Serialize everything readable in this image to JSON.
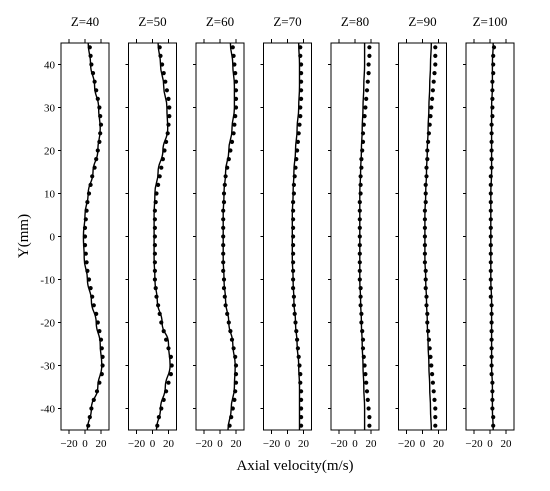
{
  "chart_data": {
    "type": "line",
    "ylabel": "Y(mm)",
    "xlabel": "Axial velocity(m/s)",
    "ylim": [
      -45,
      45
    ],
    "xlim": [
      -30,
      30
    ],
    "x_ticks": [
      -20,
      0,
      20
    ],
    "y_ticks": [
      -40,
      -30,
      -20,
      -10,
      0,
      10,
      20,
      30,
      40
    ],
    "panels": [
      {
        "title": "Z=40",
        "line": {
          "y": [
            -45,
            -40,
            -35,
            -30,
            -25,
            -20,
            -15,
            -10,
            -5,
            0,
            5,
            10,
            15,
            20,
            25,
            30,
            35,
            40,
            45
          ],
          "x": [
            3,
            8,
            16,
            21,
            19,
            14,
            8,
            3,
            -1,
            -2,
            0,
            4,
            10,
            16,
            19,
            17,
            12,
            7,
            4
          ]
        },
        "points": {
          "y": [
            -44,
            -42,
            -40,
            -38,
            -36,
            -34,
            -32,
            -30,
            -28,
            -26,
            -24,
            -22,
            -20,
            -18,
            -16,
            -14,
            -12,
            -10,
            -8,
            -6,
            -4,
            -2,
            0,
            2,
            4,
            6,
            8,
            10,
            12,
            14,
            16,
            18,
            20,
            22,
            24,
            26,
            28,
            30,
            32,
            34,
            36,
            38,
            40,
            42,
            44
          ],
          "x": [
            4,
            6,
            8,
            11,
            15,
            18,
            21,
            22,
            22,
            21,
            20,
            18,
            16,
            14,
            11,
            9,
            7,
            5,
            3,
            2,
            1,
            0,
            0,
            0,
            1,
            2,
            3,
            5,
            7,
            9,
            12,
            14,
            16,
            18,
            19,
            20,
            19,
            18,
            16,
            14,
            12,
            10,
            8,
            7,
            6
          ]
        }
      },
      {
        "title": "Z=50",
        "line": {
          "y": [
            -45,
            -40,
            -35,
            -30,
            -25,
            -20,
            -15,
            -10,
            -5,
            0,
            5,
            10,
            15,
            20,
            25,
            30,
            35,
            40,
            45
          ],
          "x": [
            5,
            10,
            16,
            22,
            20,
            12,
            6,
            3,
            2,
            2,
            2,
            3,
            7,
            13,
            19,
            18,
            14,
            10,
            7
          ]
        },
        "points": {
          "y": [
            -44,
            -42,
            -40,
            -38,
            -36,
            -34,
            -32,
            -30,
            -28,
            -26,
            -24,
            -22,
            -20,
            -18,
            -16,
            -14,
            -12,
            -10,
            -8,
            -6,
            -4,
            -2,
            0,
            2,
            4,
            6,
            8,
            10,
            12,
            14,
            16,
            18,
            20,
            22,
            24,
            26,
            28,
            30,
            32,
            34,
            36,
            38,
            40,
            42,
            44
          ],
          "x": [
            6,
            8,
            11,
            14,
            17,
            20,
            23,
            24,
            23,
            20,
            17,
            14,
            11,
            9,
            7,
            5,
            4,
            3,
            3,
            3,
            3,
            3,
            3,
            3,
            3,
            3,
            4,
            5,
            7,
            9,
            11,
            13,
            15,
            17,
            19,
            20,
            21,
            21,
            20,
            18,
            16,
            14,
            12,
            10,
            9
          ]
        }
      },
      {
        "title": "Z=60",
        "line": {
          "y": [
            -45,
            -40,
            -35,
            -30,
            -25,
            -20,
            -15,
            -10,
            -5,
            0,
            5,
            10,
            15,
            20,
            25,
            30,
            35,
            40,
            45
          ],
          "x": [
            10,
            14,
            18,
            19,
            16,
            11,
            7,
            5,
            4,
            4,
            4,
            5,
            7,
            11,
            15,
            18,
            18,
            16,
            13
          ]
        },
        "points": {
          "y": [
            -44,
            -42,
            -40,
            -38,
            -36,
            -34,
            -32,
            -30,
            -28,
            -26,
            -24,
            -22,
            -20,
            -18,
            -16,
            -14,
            -12,
            -10,
            -8,
            -6,
            -4,
            -2,
            0,
            2,
            4,
            6,
            8,
            10,
            12,
            14,
            16,
            18,
            20,
            22,
            24,
            26,
            28,
            30,
            32,
            34,
            36,
            38,
            40,
            42,
            44
          ],
          "x": [
            12,
            14,
            16,
            18,
            19,
            20,
            20,
            20,
            19,
            17,
            15,
            13,
            11,
            9,
            7,
            6,
            5,
            5,
            4,
            4,
            4,
            4,
            4,
            4,
            4,
            4,
            5,
            5,
            6,
            7,
            9,
            11,
            13,
            15,
            17,
            18,
            19,
            20,
            20,
            20,
            20,
            19,
            18,
            17,
            16
          ]
        }
      },
      {
        "title": "Z=70",
        "line": {
          "y": [
            -45,
            -40,
            -35,
            -30,
            -25,
            -20,
            -15,
            -10,
            -5,
            0,
            5,
            10,
            15,
            20,
            25,
            30,
            35,
            40,
            45
          ],
          "x": [
            15,
            15,
            15,
            14,
            12,
            10,
            8,
            7,
            6,
            6,
            6,
            7,
            8,
            10,
            12,
            14,
            15,
            15,
            14
          ]
        },
        "points": {
          "y": [
            -44,
            -42,
            -40,
            -38,
            -36,
            -34,
            -32,
            -30,
            -28,
            -26,
            -24,
            -22,
            -20,
            -18,
            -16,
            -14,
            -12,
            -10,
            -8,
            -6,
            -4,
            -2,
            0,
            2,
            4,
            6,
            8,
            10,
            12,
            14,
            16,
            18,
            20,
            22,
            24,
            26,
            28,
            30,
            32,
            34,
            36,
            38,
            40,
            42,
            44
          ],
          "x": [
            17,
            17,
            17,
            17,
            17,
            16,
            16,
            15,
            14,
            13,
            12,
            11,
            10,
            9,
            8,
            8,
            7,
            7,
            7,
            7,
            7,
            7,
            7,
            7,
            7,
            7,
            7,
            8,
            8,
            9,
            10,
            11,
            12,
            13,
            14,
            15,
            16,
            16,
            17,
            17,
            17,
            17,
            17,
            16,
            16
          ]
        }
      },
      {
        "title": "Z=80",
        "line": {
          "y": [
            -45,
            -40,
            -35,
            -30,
            -25,
            -20,
            -15,
            -10,
            -5,
            0,
            5,
            10,
            15,
            20,
            25,
            30,
            35,
            40,
            45
          ],
          "x": [
            12,
            12,
            11,
            10,
            9,
            8,
            7,
            6,
            6,
            6,
            6,
            6,
            7,
            8,
            9,
            10,
            11,
            12,
            12
          ]
        },
        "points": {
          "y": [
            -44,
            -42,
            -40,
            -38,
            -36,
            -34,
            -32,
            -30,
            -28,
            -26,
            -24,
            -22,
            -20,
            -18,
            -16,
            -14,
            -12,
            -10,
            -8,
            -6,
            -4,
            -2,
            0,
            2,
            4,
            6,
            8,
            10,
            12,
            14,
            16,
            18,
            20,
            22,
            24,
            26,
            28,
            30,
            32,
            34,
            36,
            38,
            40,
            42,
            44
          ],
          "x": [
            18,
            18,
            17,
            16,
            15,
            14,
            13,
            12,
            11,
            10,
            10,
            9,
            8,
            8,
            7,
            7,
            7,
            6,
            6,
            6,
            6,
            6,
            6,
            6,
            6,
            6,
            6,
            7,
            7,
            7,
            8,
            8,
            9,
            10,
            10,
            11,
            12,
            13,
            14,
            15,
            16,
            17,
            17,
            18,
            18
          ]
        }
      },
      {
        "title": "Z=90",
        "line": {
          "y": [
            -45,
            -40,
            -35,
            -30,
            -25,
            -20,
            -15,
            -10,
            -5,
            0,
            5,
            10,
            15,
            20,
            25,
            30,
            35,
            40,
            45
          ],
          "x": [
            11,
            10,
            9,
            8,
            7,
            6,
            5,
            4,
            3,
            3,
            3,
            4,
            5,
            6,
            7,
            8,
            9,
            10,
            11
          ]
        },
        "points": {
          "y": [
            -44,
            -42,
            -40,
            -38,
            -36,
            -34,
            -32,
            -30,
            -28,
            -26,
            -24,
            -22,
            -20,
            -18,
            -16,
            -14,
            -12,
            -10,
            -8,
            -6,
            -4,
            -2,
            0,
            2,
            4,
            6,
            8,
            10,
            12,
            14,
            16,
            18,
            20,
            22,
            24,
            26,
            28,
            30,
            32,
            34,
            36,
            38,
            40,
            42,
            44
          ],
          "x": [
            16,
            16,
            16,
            15,
            14,
            13,
            12,
            11,
            10,
            9,
            8,
            7,
            6,
            6,
            5,
            5,
            4,
            4,
            4,
            3,
            3,
            3,
            3,
            3,
            3,
            3,
            4,
            4,
            4,
            5,
            5,
            6,
            6,
            7,
            8,
            9,
            10,
            11,
            12,
            13,
            14,
            15,
            16,
            16,
            16
          ]
        }
      },
      {
        "title": "Z=100",
        "line": {
          "y": [
            -45,
            -40,
            -35,
            -30,
            -25,
            -20,
            -15,
            -10,
            -5,
            0,
            5,
            10,
            15,
            20,
            25,
            30,
            35,
            40,
            45
          ],
          "x": [
            4,
            3,
            3,
            2,
            2,
            2,
            2,
            1,
            1,
            1,
            1,
            1,
            2,
            2,
            2,
            2,
            3,
            3,
            4
          ]
        },
        "points": {
          "y": [
            -44,
            -42,
            -40,
            -38,
            -36,
            -34,
            -32,
            -30,
            -28,
            -26,
            -24,
            -22,
            -20,
            -18,
            -16,
            -14,
            -12,
            -10,
            -8,
            -6,
            -4,
            -2,
            0,
            2,
            4,
            6,
            8,
            10,
            12,
            14,
            16,
            18,
            20,
            22,
            24,
            26,
            28,
            30,
            32,
            34,
            36,
            38,
            40,
            42,
            44
          ],
          "x": [
            4,
            4,
            3,
            3,
            3,
            3,
            2,
            2,
            2,
            2,
            2,
            2,
            2,
            2,
            2,
            1,
            1,
            1,
            1,
            1,
            1,
            1,
            1,
            1,
            1,
            1,
            1,
            1,
            1,
            1,
            2,
            2,
            2,
            2,
            2,
            2,
            3,
            3,
            3,
            3,
            3,
            4,
            4,
            4,
            5
          ]
        }
      }
    ]
  }
}
